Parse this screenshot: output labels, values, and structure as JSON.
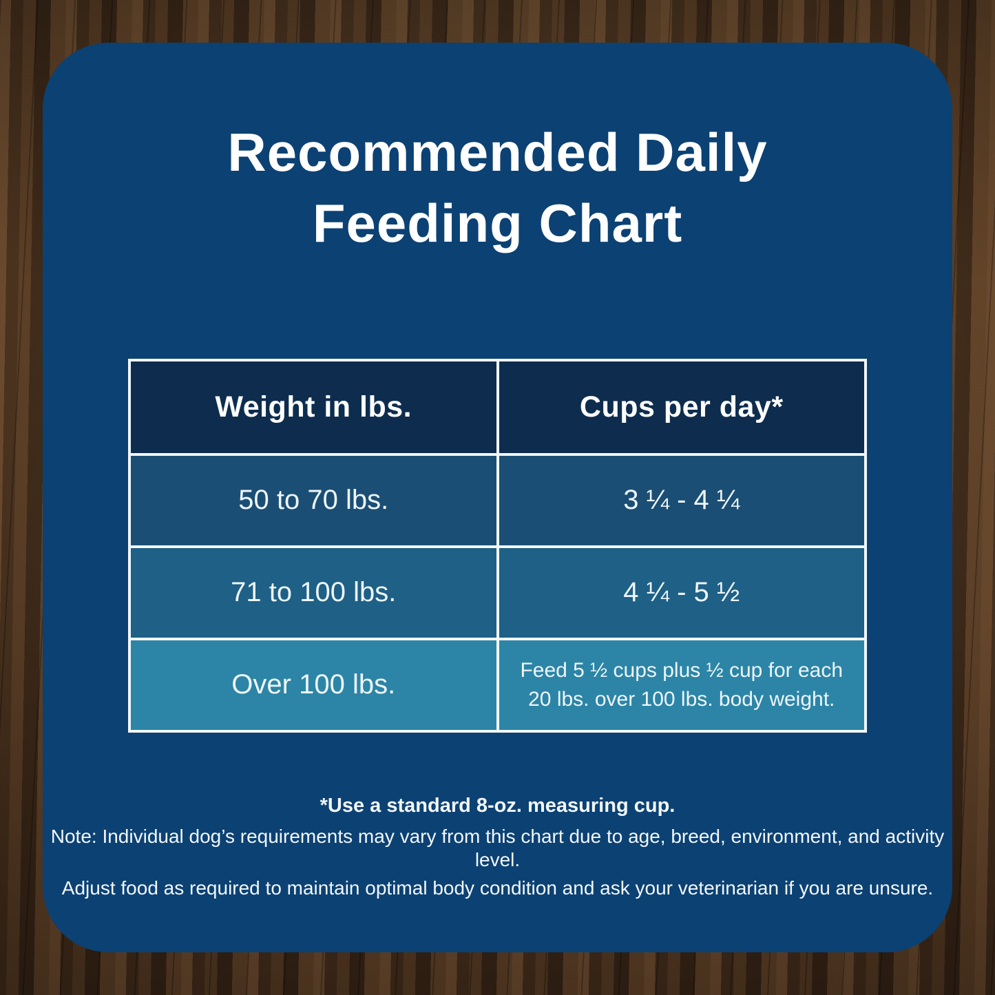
{
  "title": {
    "line1": "Recommended Daily",
    "line2": "Feeding Chart"
  },
  "table": {
    "headers": {
      "weight": "Weight in lbs.",
      "cups": "Cups per day*"
    },
    "rows": [
      {
        "weight": "50 to 70 lbs.",
        "cups": "3 ¼ - 4 ¼"
      },
      {
        "weight": "71 to 100 lbs.",
        "cups": "4 ¼ - 5 ½"
      },
      {
        "weight": "Over 100 lbs.",
        "cups": "Feed 5 ½ cups plus ½ cup for each 20 lbs. over 100 lbs. body weight."
      }
    ]
  },
  "footnotes": {
    "measuring_cup": "*Use a standard 8-oz. measuring cup.",
    "note_line1": "Note: Individual dog’s requirements may vary from this chart due to age, breed, environment, and activity level.",
    "note_line2": "Adjust food as required to maintain optimal body condition and ask your veterinarian if you are unsure."
  },
  "colors": {
    "panel_blue": "#0c4173",
    "header_navy": "#0e2d4e",
    "row1_blue": "#1b4e74",
    "row2_blue": "#1e6086",
    "row3_teal": "#2c85a6",
    "table_border_white": "#f3f7f9",
    "text_white": "#ffffff",
    "wood_brown": "#4a3322"
  },
  "chart_data": {
    "type": "table",
    "title": "Recommended Daily Feeding Chart",
    "columns": [
      "Weight in lbs.",
      "Cups per day*"
    ],
    "rows": [
      [
        "50 to 70 lbs.",
        "3 ¼ - 4 ¼"
      ],
      [
        "71 to 100 lbs.",
        "4 ¼ - 5 ½"
      ],
      [
        "Over 100 lbs.",
        "Feed 5 ½ cups plus ½ cup for each 20 lbs. over 100 lbs. body weight."
      ]
    ],
    "footnotes": [
      "*Use a standard 8-oz. measuring cup.",
      "Note: Individual dog’s requirements may vary from this chart due to age, breed, environment, and activity level.",
      "Adjust food as required to maintain optimal body condition and ask your veterinarian if you are unsure."
    ],
    "layout": {
      "header_position": "top",
      "columns_equal_width": true,
      "grid": true
    }
  }
}
